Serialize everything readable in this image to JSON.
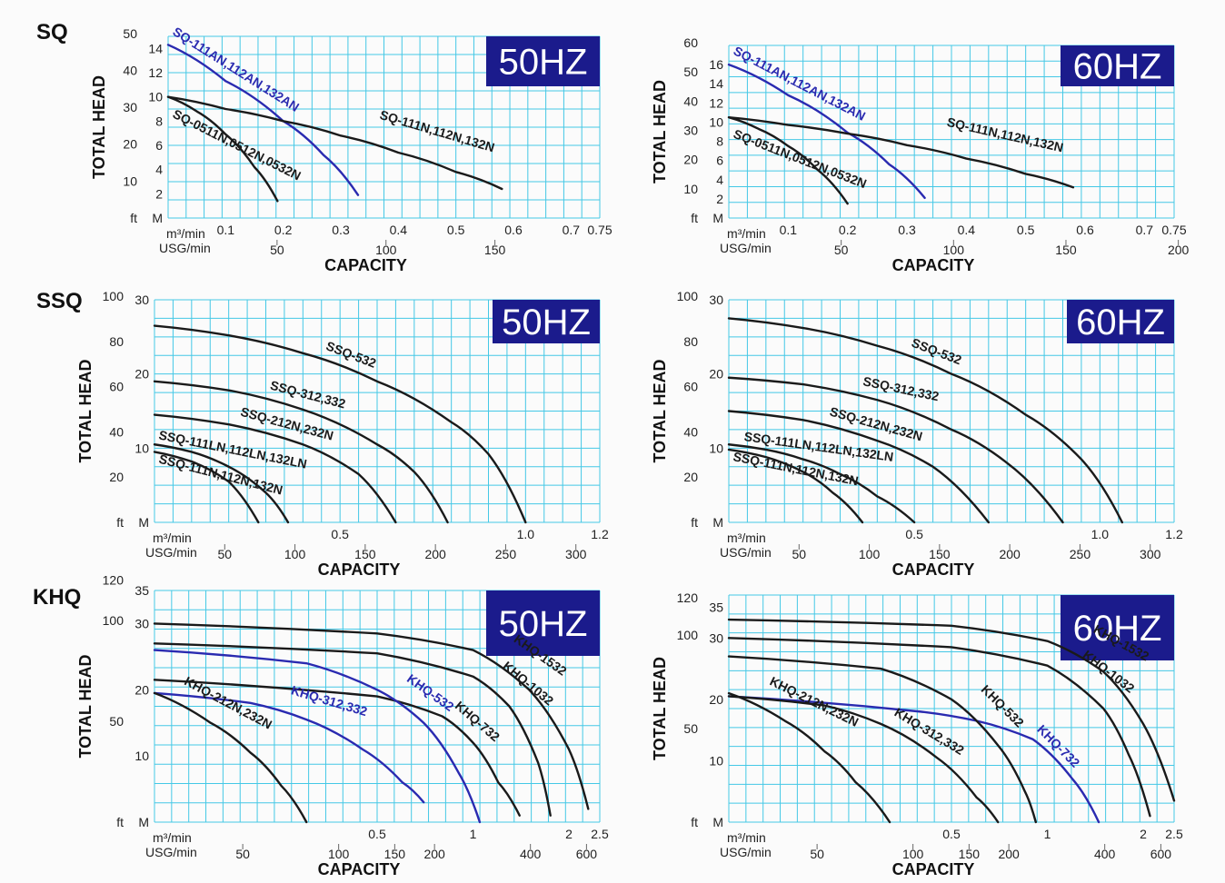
{
  "families": [
    "SQ",
    "SSQ",
    "KHQ"
  ],
  "colors": {
    "grid": "#44c8e6",
    "curve_dark": "#1a1a1a",
    "curve_blue": "#2a2ab0",
    "hz_box": "#1b1b8c"
  },
  "chart_data": [
    {
      "id": "sq-50",
      "family": "SQ",
      "frequency": "50HZ",
      "type": "line",
      "xlabel": "CAPACITY",
      "ylabel": "TOTAL HEAD",
      "x_unit_label": "m³/min",
      "x2_unit_label": "USG/min",
      "y_unit_label_m": "M",
      "y_unit_label_ft": "ft",
      "xlim": [
        0,
        0.75
      ],
      "ylim": [
        0,
        15
      ],
      "x_ticks": [
        "0.1",
        "0.2",
        "0.3",
        "0.4",
        "0.5",
        "0.6",
        "0.7",
        "0.75"
      ],
      "x_tick_values": [
        0.1,
        0.2,
        0.3,
        0.4,
        0.5,
        0.6,
        0.7,
        0.75
      ],
      "x2_ticks": [
        "50",
        "100",
        "150"
      ],
      "x2_tick_values": [
        50,
        100,
        150
      ],
      "x2_factor": 264.17,
      "y_ticks_m": [
        "2",
        "4",
        "6",
        "8",
        "10",
        "12",
        "14"
      ],
      "y_tick_values_m": [
        2,
        4,
        6,
        8,
        10,
        12,
        14
      ],
      "y_ticks_ft": [
        "10",
        "20",
        "30",
        "40",
        "50"
      ],
      "y_tick_values_ft": [
        10,
        20,
        30,
        40,
        50
      ],
      "ft_factor": 0.3048,
      "series": [
        {
          "name": "SQ-111AN,112AN,132AN",
          "color": "#2a2ab0",
          "x": [
            0.0,
            0.1,
            0.2,
            0.27,
            0.33
          ],
          "y": [
            14.3,
            11.3,
            8.0,
            5.2,
            1.9
          ],
          "label_at": 0.0,
          "label_dy": -12
        },
        {
          "name": "SQ-111N,112N,132N",
          "color": "#1a1a1a",
          "x": [
            0.0,
            0.1,
            0.2,
            0.3,
            0.4,
            0.5,
            0.58
          ],
          "y": [
            10.0,
            9.0,
            8.0,
            6.8,
            5.4,
            3.8,
            2.4
          ],
          "label_at": 0.36,
          "label_dy": -30
        },
        {
          "name": "SQ-0511N,0512N,0532N",
          "color": "#1a1a1a",
          "x": [
            0.0,
            0.05,
            0.1,
            0.15,
            0.19
          ],
          "y": [
            10.0,
            8.8,
            6.9,
            4.2,
            1.4
          ],
          "label_at": 0.0,
          "label_dy": 22
        }
      ]
    },
    {
      "id": "sq-60",
      "family": "SQ",
      "frequency": "60HZ",
      "type": "line",
      "xlabel": "CAPACITY",
      "ylabel": "TOTAL HEAD",
      "x_unit_label": "m³/min",
      "x2_unit_label": "USG/min",
      "y_unit_label_m": "M",
      "y_unit_label_ft": "ft",
      "xlim": [
        0,
        0.75
      ],
      "ylim": [
        0,
        18
      ],
      "x_ticks": [
        "0.1",
        "0.2",
        "0.3",
        "0.4",
        "0.5",
        "0.6",
        "0.7",
        "0.75"
      ],
      "x_tick_values": [
        0.1,
        0.2,
        0.3,
        0.4,
        0.5,
        0.6,
        0.7,
        0.75
      ],
      "x2_ticks": [
        "50",
        "100",
        "150",
        "200"
      ],
      "x2_tick_values": [
        50,
        100,
        150,
        200
      ],
      "x2_factor": 264.17,
      "y_ticks_m": [
        "2",
        "4",
        "6",
        "8",
        "10",
        "12",
        "14",
        "16"
      ],
      "y_tick_values_m": [
        2,
        4,
        6,
        8,
        10,
        12,
        14,
        16
      ],
      "y_ticks_ft": [
        "10",
        "20",
        "30",
        "40",
        "50",
        "60"
      ],
      "y_tick_values_ft": [
        10,
        20,
        30,
        40,
        50,
        60
      ],
      "ft_factor": 0.3048,
      "series": [
        {
          "name": "SQ-111AN,112AN,132AN",
          "color": "#2a2ab0",
          "x": [
            0.0,
            0.1,
            0.2,
            0.27,
            0.33
          ],
          "y": [
            16.0,
            12.8,
            8.9,
            5.6,
            2.1
          ],
          "label_at": 0.0,
          "label_dy": -12
        },
        {
          "name": "SQ-111N,112N,132N",
          "color": "#1a1a1a",
          "x": [
            0.0,
            0.1,
            0.2,
            0.3,
            0.4,
            0.5,
            0.58
          ],
          "y": [
            10.5,
            9.7,
            8.8,
            7.6,
            6.2,
            4.6,
            3.2
          ],
          "label_at": 0.36,
          "label_dy": -30
        },
        {
          "name": "SQ-0511N,0512N,0532N",
          "color": "#1a1a1a",
          "x": [
            0.0,
            0.05,
            0.1,
            0.15,
            0.2
          ],
          "y": [
            10.5,
            9.3,
            7.5,
            5.0,
            1.5
          ],
          "label_at": 0.0,
          "label_dy": 22
        }
      ]
    },
    {
      "id": "ssq-50",
      "family": "SSQ",
      "frequency": "50HZ",
      "type": "line",
      "xlabel": "CAPACITY",
      "ylabel": "TOTAL HEAD",
      "x_unit_label": "m³/min",
      "x2_unit_label": "USG/min",
      "y_unit_label_m": "M",
      "y_unit_label_ft": "ft",
      "xlim": [
        0,
        1.2
      ],
      "ylim": [
        0,
        30
      ],
      "x_ticks": [
        "0.5",
        "1.0",
        "1.2"
      ],
      "x_tick_values": [
        0.5,
        1.0,
        1.2
      ],
      "x2_ticks": [
        "50",
        "100",
        "150",
        "200",
        "250",
        "300"
      ],
      "x2_tick_values": [
        50,
        100,
        150,
        200,
        250,
        300
      ],
      "x2_factor": 264.17,
      "y_ticks_m": [
        "10",
        "20",
        "30"
      ],
      "y_tick_values_m": [
        10,
        20,
        30
      ],
      "y_ticks_ft": [
        "20",
        "40",
        "60",
        "80",
        "100"
      ],
      "y_tick_values_ft": [
        20,
        40,
        60,
        80,
        100
      ],
      "ft_factor": 0.3048,
      "series": [
        {
          "name": "SSQ-532",
          "color": "#1a1a1a",
          "x": [
            0.0,
            0.2,
            0.4,
            0.6,
            0.8,
            0.9,
            1.0
          ],
          "y": [
            26.5,
            25.2,
            22.8,
            19.0,
            13.5,
            9.2,
            0.0
          ],
          "label_at": 0.45,
          "label_dy": -12
        },
        {
          "name": "SSQ-312,332",
          "color": "#1a1a1a",
          "x": [
            0.0,
            0.2,
            0.4,
            0.6,
            0.7,
            0.79
          ],
          "y": [
            19.0,
            17.8,
            15.2,
            10.5,
            6.8,
            0.0
          ],
          "label_at": 0.3,
          "label_dy": -12
        },
        {
          "name": "SSQ-212N,232N",
          "color": "#1a1a1a",
          "x": [
            0.0,
            0.2,
            0.4,
            0.55,
            0.65
          ],
          "y": [
            14.5,
            13.2,
            10.5,
            6.5,
            0.0
          ],
          "label_at": 0.22,
          "label_dy": -12
        },
        {
          "name": "SSQ-111LN,112LN,132LN",
          "color": "#1a1a1a",
          "x": [
            0.0,
            0.1,
            0.2,
            0.3,
            0.36
          ],
          "y": [
            10.5,
            9.5,
            7.5,
            4.0,
            0.0
          ],
          "label_at": 0.0,
          "label_dy": -6
        },
        {
          "name": "SSQ-111N,112N,132N",
          "color": "#1a1a1a",
          "x": [
            0.0,
            0.1,
            0.2,
            0.28
          ],
          "y": [
            9.5,
            8.2,
            5.5,
            0.0
          ],
          "label_at": 0.0,
          "label_dy": 12
        }
      ]
    },
    {
      "id": "ssq-60",
      "family": "SSQ",
      "frequency": "60HZ",
      "type": "line",
      "xlabel": "CAPACITY",
      "ylabel": "TOTAL HEAD",
      "x_unit_label": "m³/min",
      "x2_unit_label": "USG/min",
      "y_unit_label_m": "M",
      "y_unit_label_ft": "ft",
      "xlim": [
        0,
        1.2
      ],
      "ylim": [
        0,
        30
      ],
      "x_ticks": [
        "0.5",
        "1.0",
        "1.2"
      ],
      "x_tick_values": [
        0.5,
        1.0,
        1.2
      ],
      "x2_ticks": [
        "50",
        "100",
        "150",
        "200",
        "250",
        "300"
      ],
      "x2_tick_values": [
        50,
        100,
        150,
        200,
        250,
        300
      ],
      "x2_factor": 264.17,
      "y_ticks_m": [
        "10",
        "20",
        "30"
      ],
      "y_tick_values_m": [
        10,
        20,
        30
      ],
      "y_ticks_ft": [
        "20",
        "40",
        "60",
        "80",
        "100"
      ],
      "y_tick_values_ft": [
        20,
        40,
        60,
        80,
        100
      ],
      "ft_factor": 0.3048,
      "series": [
        {
          "name": "SSQ-532",
          "color": "#1a1a1a",
          "x": [
            0.0,
            0.2,
            0.4,
            0.6,
            0.8,
            0.95,
            1.06
          ],
          "y": [
            27.5,
            26.2,
            23.8,
            20.0,
            14.5,
            8.5,
            0.0
          ],
          "label_at": 0.48,
          "label_dy": -12
        },
        {
          "name": "SSQ-312,332",
          "color": "#1a1a1a",
          "x": [
            0.0,
            0.2,
            0.4,
            0.6,
            0.75,
            0.9
          ],
          "y": [
            19.5,
            18.6,
            16.5,
            12.5,
            8.0,
            0.0
          ],
          "label_at": 0.35,
          "label_dy": -12
        },
        {
          "name": "SSQ-212N,232N",
          "color": "#1a1a1a",
          "x": [
            0.0,
            0.2,
            0.4,
            0.55,
            0.7
          ],
          "y": [
            15.0,
            13.8,
            11.0,
            7.5,
            0.0
          ],
          "label_at": 0.26,
          "label_dy": -12
        },
        {
          "name": "SSQ-111LN,112LN,132LN",
          "color": "#1a1a1a",
          "x": [
            0.0,
            0.1,
            0.2,
            0.3,
            0.4,
            0.5
          ],
          "y": [
            10.5,
            9.8,
            8.5,
            6.5,
            3.5,
            0.0
          ],
          "label_at": 0.03,
          "label_dy": -6
        },
        {
          "name": "SSQ-111N,112N,132N",
          "color": "#1a1a1a",
          "x": [
            0.0,
            0.1,
            0.2,
            0.28,
            0.36
          ],
          "y": [
            9.8,
            8.8,
            6.8,
            4.0,
            0.0
          ],
          "label_at": 0.0,
          "label_dy": 12
        }
      ]
    },
    {
      "id": "khq-50",
      "family": "KHQ",
      "frequency": "50HZ",
      "type": "line",
      "xlabel": "CAPACITY",
      "ylabel": "TOTAL HEAD",
      "x_unit_label": "m³/min",
      "x2_unit_label": "USG/min",
      "y_unit_label_m": "M",
      "y_unit_label_ft": "ft",
      "xlim": [
        0,
        2.5
      ],
      "ylim": [
        0,
        35
      ],
      "x_ticks": [
        "0.5",
        "1",
        "2",
        "2.5"
      ],
      "x_tick_values": [
        0.5,
        1,
        2,
        2.5
      ],
      "x2_ticks": [
        "50",
        "100",
        "150",
        "200",
        "400",
        "600"
      ],
      "x2_tick_values": [
        50,
        100,
        150,
        200,
        400,
        600
      ],
      "x2_factor": 264.17,
      "y_ticks_m": [
        "10",
        "20",
        "30",
        "35"
      ],
      "y_tick_values_m": [
        10,
        20,
        30,
        35
      ],
      "y_ticks_ft": [
        "50",
        "100",
        "120"
      ],
      "y_tick_values_ft": [
        50,
        100,
        120
      ],
      "ft_factor": 0.3048,
      "scale": "log",
      "series": [
        {
          "name": "KHQ-1532",
          "color": "#1a1a1a",
          "x": [
            0.1,
            0.5,
            1.0,
            1.5,
            2.0,
            2.3
          ],
          "y": [
            30.0,
            28.5,
            26.0,
            20.0,
            11.0,
            2.0
          ],
          "label_at": 1.3,
          "label_dy": -10
        },
        {
          "name": "KHQ-1032",
          "color": "#1a1a1a",
          "x": [
            0.1,
            0.5,
            1.0,
            1.3,
            1.6,
            1.75
          ],
          "y": [
            27.0,
            25.5,
            22.0,
            17.5,
            9.0,
            1.0
          ],
          "label_at": 1.2,
          "label_dy": -10
        },
        {
          "name": "KHQ-732",
          "color": "#1a1a1a",
          "x": [
            0.1,
            0.5,
            0.8,
            1.0,
            1.2,
            1.4
          ],
          "y": [
            21.5,
            19.0,
            16.0,
            12.0,
            6.0,
            1.0
          ],
          "label_at": 0.85,
          "label_dy": -10
        },
        {
          "name": "KHQ-532",
          "color": "#2a2ab0",
          "x": [
            0.1,
            0.3,
            0.5,
            0.7,
            0.9,
            1.05
          ],
          "y": [
            26.0,
            24.0,
            20.0,
            15.0,
            7.5,
            0.0
          ],
          "label_at": 0.6,
          "label_dy": -10
        },
        {
          "name": "KHQ-312,332",
          "color": "#2a2ab0",
          "x": [
            0.1,
            0.2,
            0.3,
            0.45,
            0.6,
            0.7
          ],
          "y": [
            19.5,
            18.0,
            15.5,
            11.0,
            6.0,
            3.0
          ],
          "label_at": 0.26,
          "label_dy": -10
        },
        {
          "name": "KHQ-212N,232N",
          "color": "#1a1a1a",
          "x": [
            0.1,
            0.15,
            0.2,
            0.25,
            0.3
          ],
          "y": [
            19.5,
            15.0,
            10.5,
            5.5,
            0.0
          ],
          "label_at": 0.12,
          "label_dy": -10
        }
      ]
    },
    {
      "id": "khq-60",
      "family": "KHQ",
      "frequency": "60HZ",
      "type": "line",
      "xlabel": "CAPACITY",
      "ylabel": "TOTAL HEAD",
      "x_unit_label": "m³/min",
      "x2_unit_label": "USG/min",
      "y_unit_label_m": "M",
      "y_unit_label_ft": "ft",
      "xlim": [
        0,
        2.5
      ],
      "ylim": [
        0,
        37
      ],
      "x_ticks": [
        "0.5",
        "1",
        "2",
        "2.5"
      ],
      "x_tick_values": [
        0.5,
        1,
        2,
        2.5
      ],
      "x2_ticks": [
        "50",
        "100",
        "150",
        "200",
        "400",
        "600"
      ],
      "x2_tick_values": [
        50,
        100,
        150,
        200,
        400,
        600
      ],
      "x2_factor": 264.17,
      "y_ticks_m": [
        "10",
        "20",
        "30",
        "35"
      ],
      "y_tick_values_m": [
        10,
        20,
        30,
        35
      ],
      "y_ticks_ft": [
        "50",
        "100",
        "120"
      ],
      "y_tick_values_ft": [
        50,
        100,
        120
      ],
      "ft_factor": 0.3048,
      "scale": "log",
      "series": [
        {
          "name": "KHQ-1532",
          "color": "#1a1a1a",
          "x": [
            0.1,
            0.5,
            1.0,
            1.5,
            2.0,
            2.5
          ],
          "y": [
            33.0,
            32.0,
            29.5,
            24.5,
            16.0,
            3.5
          ],
          "label_at": 1.35,
          "label_dy": -10
        },
        {
          "name": "KHQ-1032",
          "color": "#1a1a1a",
          "x": [
            0.1,
            0.5,
            1.0,
            1.5,
            1.8,
            2.1
          ],
          "y": [
            30.0,
            28.5,
            25.5,
            18.5,
            11.0,
            1.0
          ],
          "label_at": 1.25,
          "label_dy": -10
        },
        {
          "name": "KHQ-732",
          "color": "#2a2ab0",
          "x": [
            0.1,
            0.4,
            0.6,
            0.9,
            1.2,
            1.45
          ],
          "y": [
            20.5,
            18.0,
            16.5,
            13.5,
            7.0,
            0.0
          ],
          "label_at": 0.9,
          "label_dy": -10
        },
        {
          "name": "KHQ-532",
          "color": "#1a1a1a",
          "x": [
            0.1,
            0.3,
            0.5,
            0.7,
            0.85,
            0.92
          ],
          "y": [
            27.0,
            25.0,
            20.0,
            12.5,
            5.0,
            0.0
          ],
          "label_at": 0.6,
          "label_dy": -10
        },
        {
          "name": "KHQ-312,332",
          "color": "#1a1a1a",
          "x": [
            0.1,
            0.2,
            0.3,
            0.45,
            0.6,
            0.7
          ],
          "y": [
            20.5,
            19.0,
            16.0,
            10.5,
            4.0,
            0.0
          ],
          "label_at": 0.32,
          "label_dy": -10
        },
        {
          "name": "KHQ-212N,232N",
          "color": "#1a1a1a",
          "x": [
            0.1,
            0.15,
            0.2,
            0.25,
            0.32
          ],
          "y": [
            21.0,
            16.5,
            11.5,
            6.5,
            0.0
          ],
          "label_at": 0.13,
          "label_dy": -10
        }
      ]
    }
  ]
}
